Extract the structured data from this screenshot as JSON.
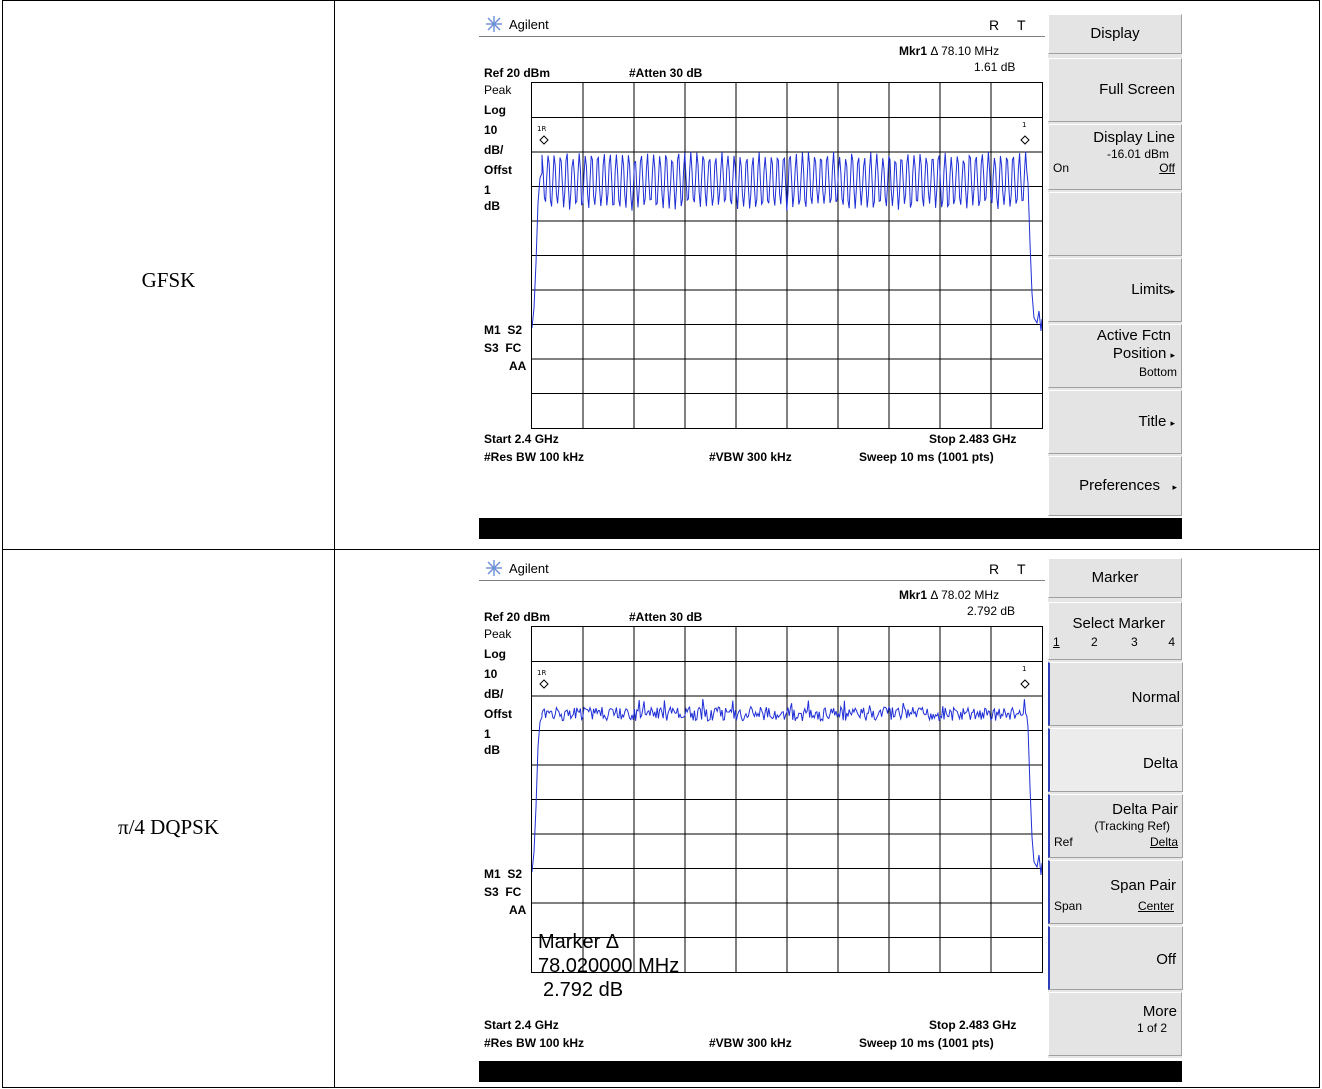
{
  "rows": [
    {
      "modulation": "GFSK",
      "analyzer": {
        "brand": "Agilent",
        "status_r": "R",
        "status_t": "T",
        "mkr_label": "Mkr1",
        "mkr_delta_symbol": "Δ",
        "mkr_freq": "78.10 MHz",
        "mkr_value": "1.61 dB",
        "ref": "Ref 20 dBm",
        "atten": "#Atten 30 dB",
        "side_labels": [
          "Peak",
          "Log",
          "10",
          "dB/",
          "Offst",
          "1",
          "dB"
        ],
        "flags": [
          "M1  S2",
          "S3  FC",
          "AA"
        ],
        "start": "Start 2.4 GHz",
        "stop": "Stop 2.483 GHz",
        "res_bw": "#Res BW 100 kHz",
        "vbw": "#VBW 300 kHz",
        "sweep": "Sweep 10 ms (1001 pts)",
        "marker_ref_label": "1R",
        "marker_label": "1",
        "softkeys": {
          "title": "Display",
          "full_screen": "Full Screen",
          "display_line": "Display Line",
          "display_line_value": "-16.01 dBm",
          "on": "On",
          "off": "Off",
          "limits": "Limits",
          "active_fctn": "Active Fctn",
          "position": "Position",
          "bottom": "Bottom",
          "title_key": "Title",
          "preferences": "Preferences"
        }
      }
    },
    {
      "modulation": "π/4 DQPSK",
      "analyzer": {
        "brand": "Agilent",
        "status_r": "R",
        "status_t": "T",
        "mkr_label": "Mkr1",
        "mkr_delta_symbol": "Δ",
        "mkr_freq": "78.02 MHz",
        "mkr_value": "2.792 dB",
        "ref": "Ref 20 dBm",
        "atten": "#Atten 30 dB",
        "side_labels": [
          "Peak",
          "Log",
          "10",
          "dB/",
          "Offst",
          "1",
          "dB"
        ],
        "flags": [
          "M1  S2",
          "S3  FC",
          "AA"
        ],
        "start": "Start 2.4 GHz",
        "stop": "Stop 2.483 GHz",
        "res_bw": "#Res BW 100 kHz",
        "vbw": "#VBW 300 kHz",
        "sweep": "Sweep 10 ms (1001 pts)",
        "marker_ref_label": "1R",
        "marker_label": "1",
        "overlay": [
          "Marker Δ",
          "78.020000 MHz",
          "2.792 dB"
        ],
        "softkeys": {
          "title": "Marker",
          "select_marker": "Select Marker",
          "m1": "1",
          "m2": "2",
          "m3": "3",
          "m4": "4",
          "normal": "Normal",
          "delta": "Delta",
          "delta_pair": "Delta Pair",
          "tracking_ref": "(Tracking Ref)",
          "ref": "Ref",
          "delta_small": "Delta",
          "span_pair": "Span Pair",
          "span": "Span",
          "center": "Center",
          "off": "Off",
          "more": "More",
          "page": "1 of 2"
        }
      }
    }
  ],
  "colors": {
    "trace": "#1f2fd6",
    "grid": "#000000",
    "softkey": "#e4e4e4",
    "accent": "#2c3fb8"
  }
}
